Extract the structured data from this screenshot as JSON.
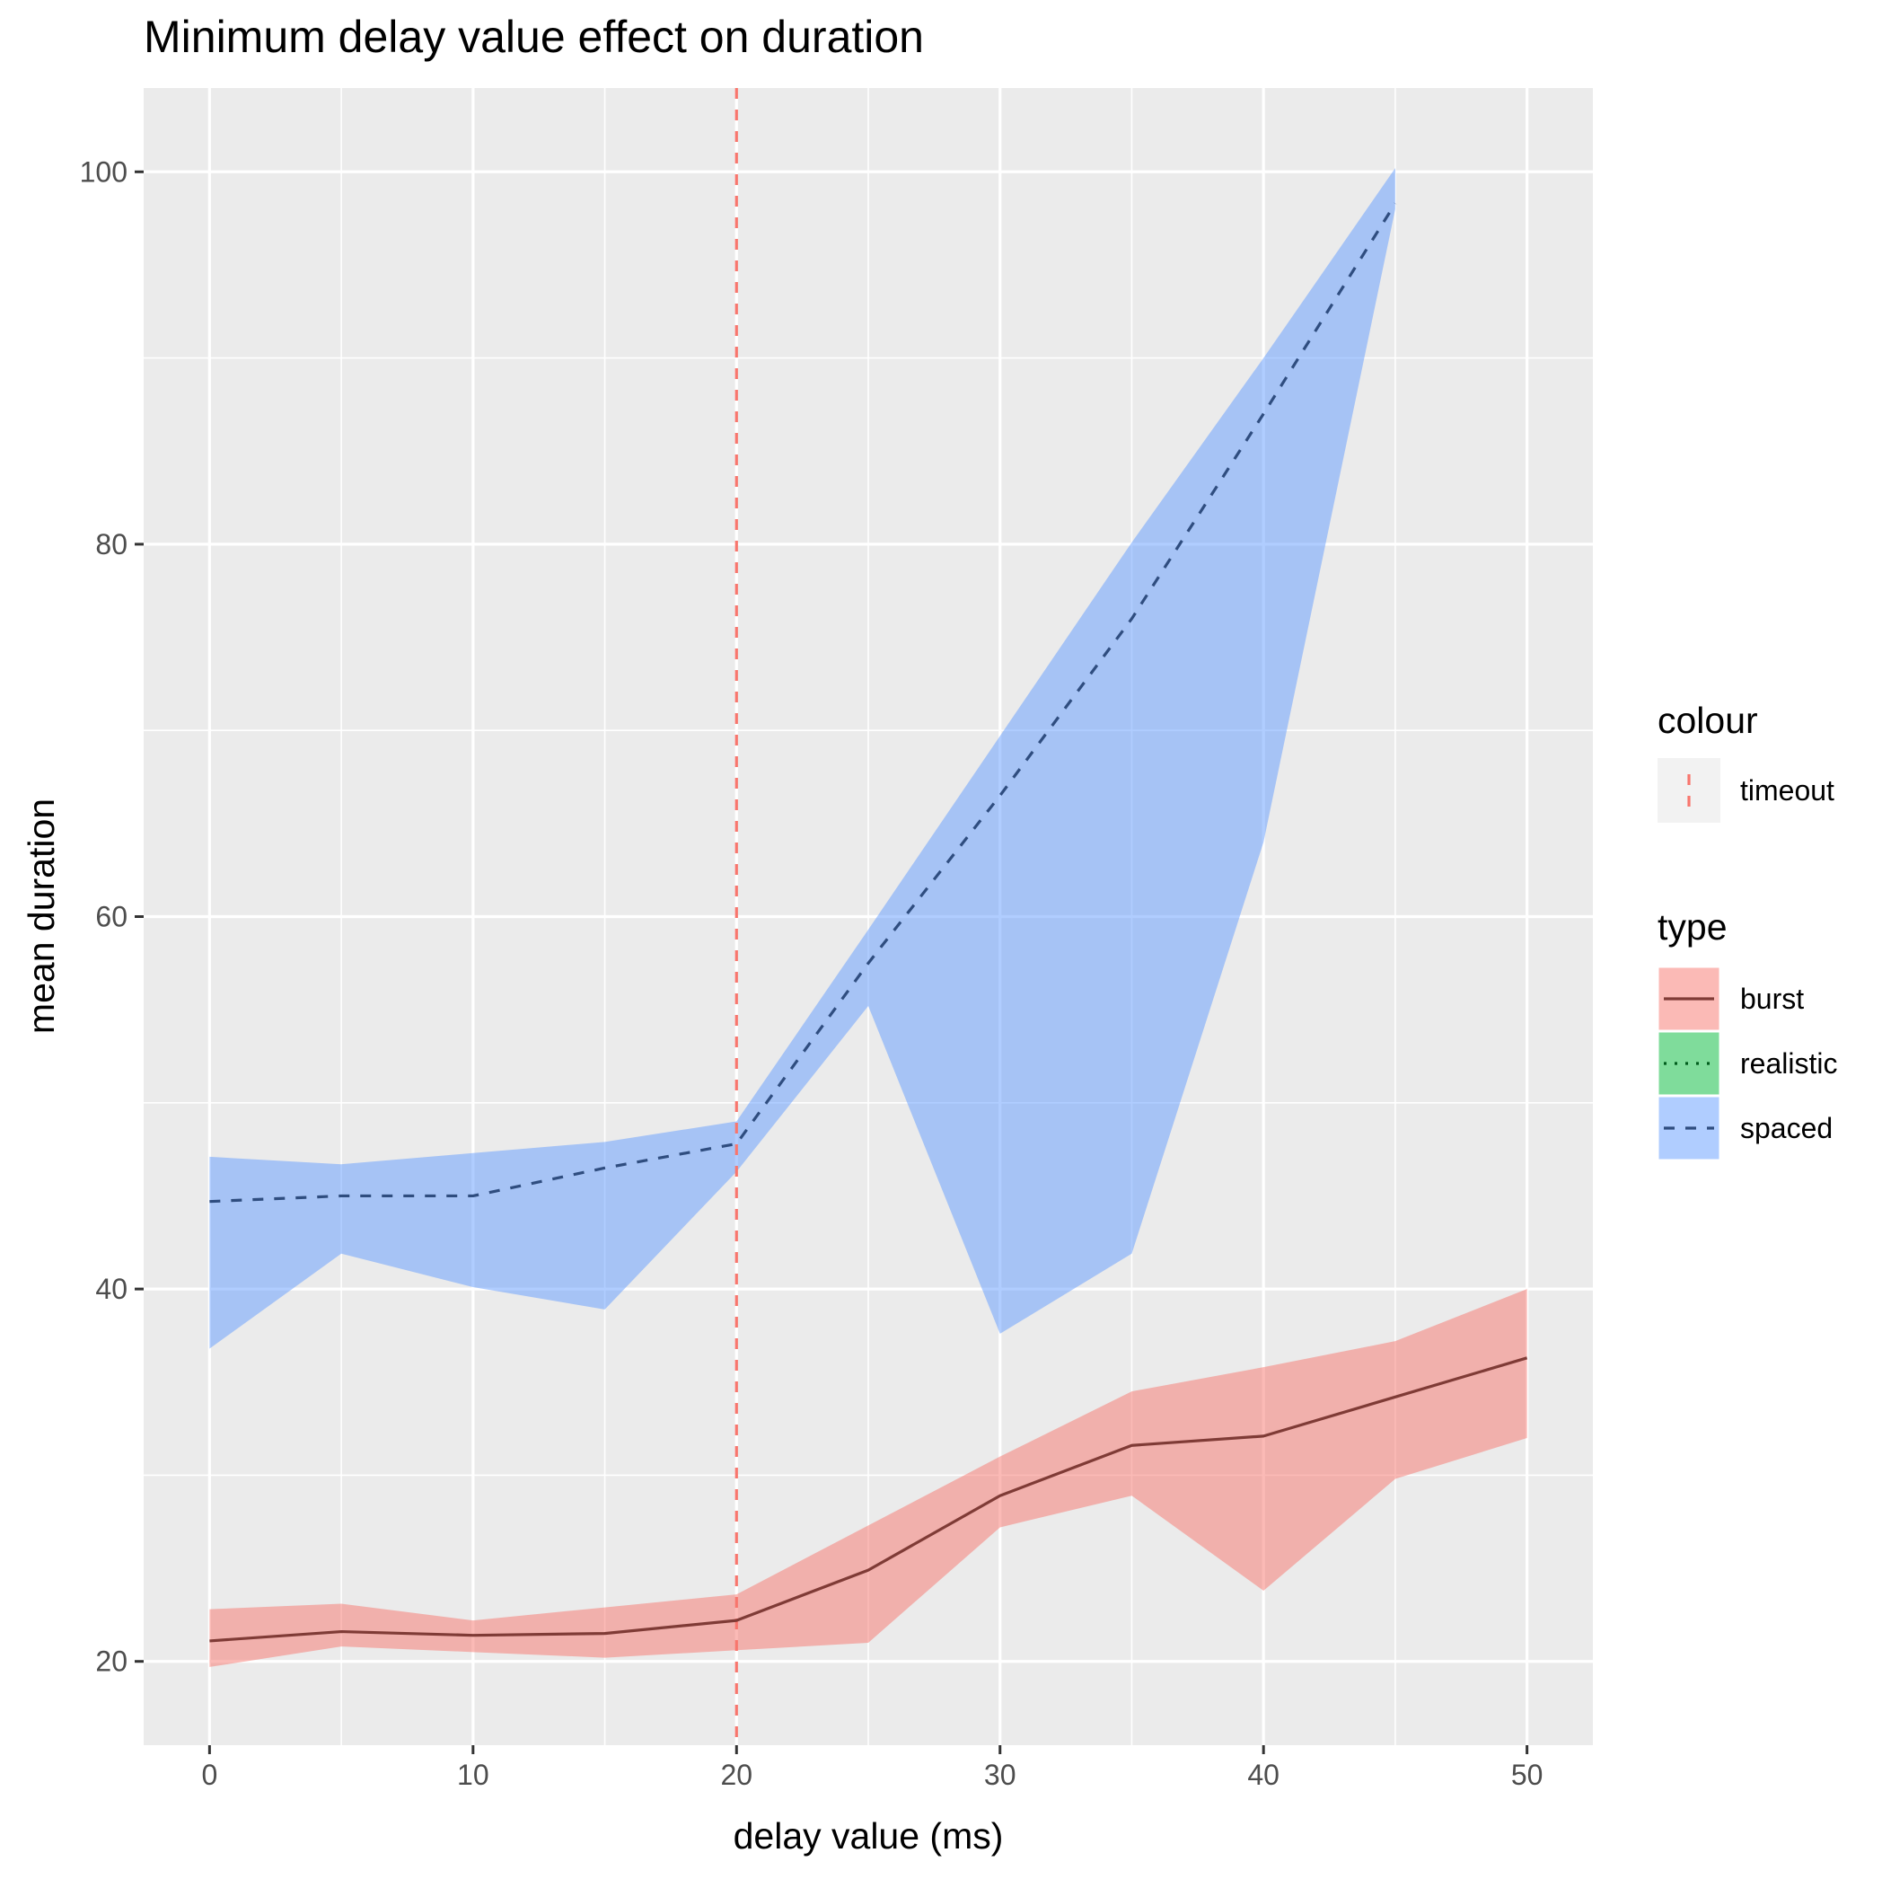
{
  "chart_data": {
    "type": "line",
    "title": "Minimum delay value effect on duration",
    "xlabel": "delay value (ms)",
    "ylabel": "mean duration",
    "xlim": [
      -2.5,
      52.5
    ],
    "ylim": [
      15.5,
      104.5
    ],
    "x_ticks": [
      0,
      10,
      20,
      30,
      40,
      50
    ],
    "y_ticks": [
      20,
      40,
      60,
      80,
      100
    ],
    "y_minor_grid": [
      30,
      50,
      70,
      90
    ],
    "x_minor_grid": [
      5,
      15,
      25,
      35,
      45
    ],
    "grid": true,
    "panel_background": "#ebebeb",
    "vline": {
      "x": 20,
      "label": "timeout",
      "color": "#f8766d",
      "linetype": "dashed"
    },
    "series": [
      {
        "name": "burst",
        "fill": "#f8766d",
        "line_color": "#7f3b36",
        "linetype": "solid",
        "x": [
          0,
          5,
          10,
          15,
          20,
          25,
          30,
          35,
          40,
          45,
          50
        ],
        "y": [
          21.1,
          21.6,
          21.4,
          21.5,
          22.2,
          24.9,
          28.9,
          31.6,
          32.1,
          34.2,
          36.3
        ],
        "ymin": [
          19.7,
          20.8,
          20.5,
          20.2,
          20.6,
          21.0,
          27.2,
          28.9,
          23.8,
          29.8,
          32.0
        ],
        "ymax": [
          22.8,
          23.1,
          22.2,
          22.9,
          23.6,
          27.3,
          31.0,
          34.5,
          35.8,
          37.2,
          40.0
        ]
      },
      {
        "name": "realistic",
        "fill": "#00ba38",
        "line_color": "#005c1c",
        "linetype": "dotted",
        "x": [],
        "y": [],
        "ymin": [],
        "ymax": []
      },
      {
        "name": "spaced",
        "fill": "#619cff",
        "line_color": "#2f4d7f",
        "linetype": "dashed",
        "x": [
          0,
          5,
          10,
          15,
          20,
          25,
          30,
          35,
          40,
          45
        ],
        "y": [
          44.7,
          45.0,
          45.0,
          46.5,
          47.8,
          57.5,
          66.5,
          76.0,
          87.0,
          98.3
        ],
        "ymin": [
          36.8,
          41.9,
          40.1,
          38.9,
          46.3,
          55.2,
          37.6,
          41.9,
          64.0,
          98.0
        ],
        "ymax": [
          47.1,
          46.7,
          47.3,
          47.9,
          49.0,
          59.3,
          69.7,
          80.1,
          90.0,
          100.2
        ]
      }
    ],
    "legend": {
      "position": "right",
      "colour_title": "colour",
      "colour_items": [
        "timeout"
      ],
      "type_title": "type",
      "type_items": [
        "burst",
        "realistic",
        "spaced"
      ]
    }
  }
}
